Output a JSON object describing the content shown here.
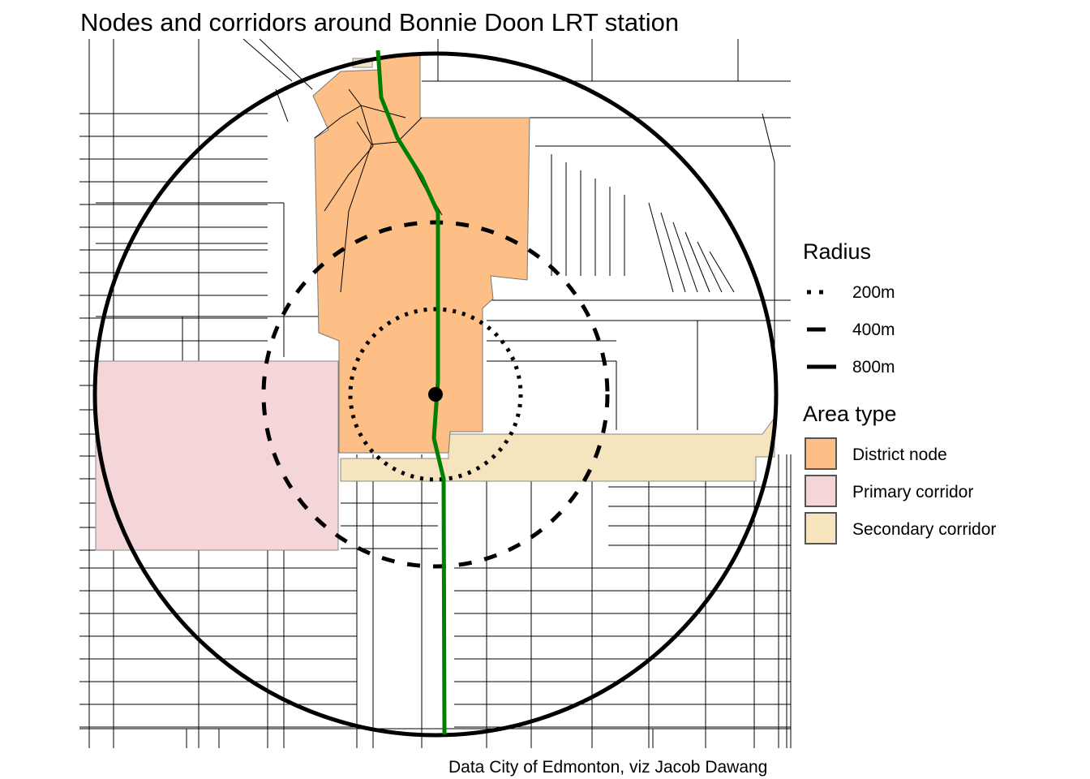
{
  "title": "Nodes and corridors around Bonnie Doon LRT station",
  "caption": "Data City of Edmonton, viz Jacob Dawang",
  "legend": {
    "radius": {
      "title": "Radius",
      "items": [
        {
          "label": "200m",
          "linetype": "dotted"
        },
        {
          "label": "400m",
          "linetype": "dashed"
        },
        {
          "label": "800m",
          "linetype": "solid"
        }
      ]
    },
    "area_type": {
      "title": "Area type",
      "items": [
        {
          "label": "District node",
          "color": "#FDBF85"
        },
        {
          "label": "Primary corridor",
          "color": "#F4D5D8"
        },
        {
          "label": "Secondary corridor",
          "color": "#F6E4BF"
        }
      ]
    }
  },
  "colors": {
    "lrt_line": "#008000",
    "station": "#000000",
    "streets": "#000000"
  }
}
